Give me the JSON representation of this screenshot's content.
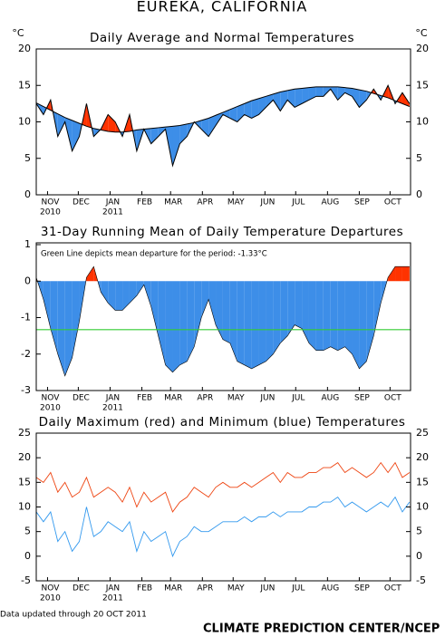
{
  "title": "EUREKA, CALIFORNIA",
  "footer_note": "Data updated through 20 OCT 2011",
  "credit": "CLIMATE PREDICTION CENTER/NCEP",
  "chart_data": [
    {
      "type": "band",
      "title": "Daily Average and Normal Temperatures",
      "ylabel": "°C",
      "y2label": "°C",
      "x": [
        0,
        7,
        14,
        21,
        28,
        35,
        42,
        49,
        56,
        63,
        70,
        77,
        84,
        91,
        98,
        105,
        112,
        119,
        126,
        133,
        140,
        147,
        154,
        161,
        168,
        175,
        182,
        189,
        196,
        203,
        210,
        217,
        224,
        231,
        238,
        245,
        252,
        259,
        266,
        273,
        280,
        287,
        294,
        301,
        308,
        315,
        322,
        329,
        336,
        343,
        350,
        357,
        364
      ],
      "xlim": [
        0,
        365
      ],
      "xticks": [
        {
          "value": 11,
          "label": "NOV"
        },
        {
          "value": 41,
          "label": "DEC"
        },
        {
          "value": 72,
          "label": "JAN"
        },
        {
          "value": 103,
          "label": "FEB"
        },
        {
          "value": 131,
          "label": "MAR"
        },
        {
          "value": 162,
          "label": "APR"
        },
        {
          "value": 192,
          "label": "MAY"
        },
        {
          "value": 223,
          "label": "JUN"
        },
        {
          "value": 253,
          "label": "JUL"
        },
        {
          "value": 284,
          "label": "AUG"
        },
        {
          "value": 315,
          "label": "SEP"
        },
        {
          "value": 345,
          "label": "OCT"
        }
      ],
      "year_labels": [
        {
          "value": 11,
          "label": "2010"
        },
        {
          "value": 72,
          "label": "2011"
        }
      ],
      "ylim": [
        0,
        20
      ],
      "yticks": [
        0,
        5,
        10,
        15,
        20
      ],
      "y2lim": [
        0,
        20
      ],
      "y2ticks": [
        0,
        5,
        10,
        15,
        20
      ],
      "above_color": "#ff3300",
      "below_color": "#3d8ee8",
      "series": [
        {
          "color": "#000000",
          "values": [
            12.5,
            11,
            13,
            8,
            10,
            6,
            8,
            12.5,
            8,
            9,
            11,
            10,
            8,
            11,
            6,
            9,
            7,
            8,
            9,
            4,
            7,
            8,
            10,
            9,
            8,
            9.5,
            11,
            10.5,
            10,
            11,
            10.5,
            11,
            12,
            13,
            11.5,
            13,
            12,
            12.5,
            13,
            13.5,
            13.5,
            14.5,
            13,
            14,
            13.5,
            12,
            13,
            14.5,
            13,
            15,
            12.5,
            14,
            12.5
          ]
        },
        {
          "color": "#000000",
          "values": [
            12.6,
            12.1,
            11.6,
            11.1,
            10.6,
            10.2,
            9.8,
            9.4,
            9.1,
            8.9,
            8.7,
            8.6,
            8.6,
            8.7,
            8.9,
            9.0,
            9.1,
            9.2,
            9.3,
            9.4,
            9.5,
            9.7,
            9.9,
            10.2,
            10.5,
            10.9,
            11.3,
            11.7,
            12.1,
            12.5,
            12.9,
            13.2,
            13.5,
            13.8,
            14.1,
            14.3,
            14.5,
            14.6,
            14.7,
            14.8,
            14.8,
            14.8,
            14.8,
            14.7,
            14.6,
            14.4,
            14.2,
            13.9,
            13.6,
            13.3,
            12.9,
            12.5,
            12.1
          ]
        }
      ]
    },
    {
      "type": "area",
      "title": "31-Day Running Mean of Daily Temperature Departures",
      "annotation": "Green Line depicts mean departure for the period: -1.33°C",
      "x": [
        0,
        7,
        14,
        21,
        28,
        35,
        42,
        49,
        56,
        63,
        70,
        77,
        84,
        91,
        98,
        105,
        112,
        119,
        126,
        133,
        140,
        147,
        154,
        161,
        168,
        175,
        182,
        189,
        196,
        203,
        210,
        217,
        224,
        231,
        238,
        245,
        252,
        259,
        266,
        273,
        280,
        287,
        294,
        301,
        308,
        315,
        322,
        329,
        336,
        343,
        350,
        357,
        364
      ],
      "xlim": [
        0,
        365
      ],
      "xticks": [
        {
          "value": 11,
          "label": "NOV"
        },
        {
          "value": 41,
          "label": "DEC"
        },
        {
          "value": 72,
          "label": "JAN"
        },
        {
          "value": 103,
          "label": "FEB"
        },
        {
          "value": 131,
          "label": "MAR"
        },
        {
          "value": 162,
          "label": "APR"
        },
        {
          "value": 192,
          "label": "MAY"
        },
        {
          "value": 223,
          "label": "JUN"
        },
        {
          "value": 253,
          "label": "JUL"
        },
        {
          "value": 284,
          "label": "AUG"
        },
        {
          "value": 315,
          "label": "SEP"
        },
        {
          "value": 345,
          "label": "OCT"
        }
      ],
      "year_labels": [
        {
          "value": 11,
          "label": "2010"
        },
        {
          "value": 72,
          "label": "2011"
        }
      ],
      "ylim": [
        -3,
        1.05
      ],
      "yticks": [
        -3,
        -2,
        -1,
        0,
        1
      ],
      "above_color": "#ff3300",
      "below_color": "#3d8ee8",
      "mean_line": {
        "value": -1.33,
        "color": "#33cc33"
      },
      "values": [
        0.1,
        -0.5,
        -1.3,
        -2.0,
        -2.6,
        -2.1,
        -1.1,
        0.1,
        0.4,
        -0.3,
        -0.6,
        -0.8,
        -0.8,
        -0.6,
        -0.4,
        -0.1,
        -0.7,
        -1.5,
        -2.3,
        -2.5,
        -2.3,
        -2.2,
        -1.8,
        -1.0,
        -0.5,
        -1.2,
        -1.6,
        -1.7,
        -2.2,
        -2.3,
        -2.4,
        -2.3,
        -2.2,
        -2.0,
        -1.7,
        -1.5,
        -1.2,
        -1.3,
        -1.7,
        -1.9,
        -1.9,
        -1.8,
        -1.9,
        -1.8,
        -2.0,
        -2.4,
        -2.2,
        -1.5,
        -0.6,
        0.1,
        0.4,
        0.4,
        0.4
      ]
    },
    {
      "type": "line",
      "title": "Daily Maximum (red) and Minimum (blue) Temperatures",
      "x": [
        0,
        7,
        14,
        21,
        28,
        35,
        42,
        49,
        56,
        63,
        70,
        77,
        84,
        91,
        98,
        105,
        112,
        119,
        126,
        133,
        140,
        147,
        154,
        161,
        168,
        175,
        182,
        189,
        196,
        203,
        210,
        217,
        224,
        231,
        238,
        245,
        252,
        259,
        266,
        273,
        280,
        287,
        294,
        301,
        308,
        315,
        322,
        329,
        336,
        343,
        350,
        357,
        364
      ],
      "xlim": [
        0,
        365
      ],
      "xticks": [
        {
          "value": 11,
          "label": "NOV"
        },
        {
          "value": 41,
          "label": "DEC"
        },
        {
          "value": 72,
          "label": "JAN"
        },
        {
          "value": 103,
          "label": "FEB"
        },
        {
          "value": 131,
          "label": "MAR"
        },
        {
          "value": 162,
          "label": "APR"
        },
        {
          "value": 192,
          "label": "MAY"
        },
        {
          "value": 223,
          "label": "JUN"
        },
        {
          "value": 253,
          "label": "JUL"
        },
        {
          "value": 284,
          "label": "AUG"
        },
        {
          "value": 315,
          "label": "SEP"
        },
        {
          "value": 345,
          "label": "OCT"
        }
      ],
      "year_labels": [
        {
          "value": 11,
          "label": "2010"
        },
        {
          "value": 72,
          "label": "2011"
        }
      ],
      "ylim": [
        -5,
        25
      ],
      "yticks": [
        -5,
        0,
        5,
        10,
        15,
        20,
        25
      ],
      "y2lim": [
        -5,
        25
      ],
      "y2ticks": [
        -5,
        0,
        5,
        10,
        15,
        20,
        25
      ],
      "series": [
        {
          "color": "#ee4411",
          "values": [
            16,
            15,
            17,
            13,
            15,
            12,
            13,
            16,
            12,
            13,
            14,
            13,
            11,
            14,
            10,
            13,
            11,
            12,
            13,
            9,
            11,
            12,
            14,
            13,
            12,
            14,
            15,
            14,
            14,
            15,
            14,
            15,
            16,
            17,
            15,
            17,
            16,
            16,
            17,
            17,
            18,
            18,
            19,
            17,
            18,
            17,
            16,
            17,
            19,
            17,
            19,
            16,
            17
          ]
        },
        {
          "color": "#3399ee",
          "values": [
            9,
            7,
            9,
            3,
            5,
            1,
            3,
            10,
            4,
            5,
            7,
            6,
            5,
            7,
            1,
            5,
            3,
            4,
            5,
            0,
            3,
            4,
            6,
            5,
            5,
            6,
            7,
            7,
            7,
            8,
            7,
            8,
            8,
            9,
            8,
            9,
            9,
            9,
            10,
            10,
            11,
            11,
            12,
            10,
            11,
            10,
            9,
            10,
            11,
            10,
            12,
            9,
            11
          ]
        }
      ]
    }
  ]
}
